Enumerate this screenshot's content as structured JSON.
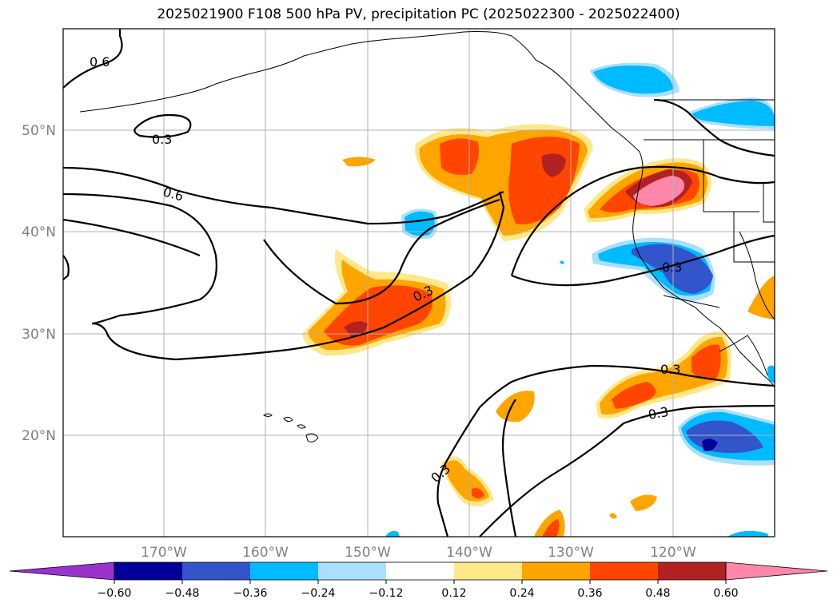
{
  "title": "2025021900 F108 500 hPa PV, precipitation PC (2025022300 - 2025022400)",
  "lat_labels": [
    "50°N",
    "40°N",
    "30°N",
    "20°N"
  ],
  "lon_labels": [
    "170°W",
    "160°W",
    "150°W",
    "140°W",
    "130°W",
    "120°W"
  ],
  "contour_labels": [
    "0.6",
    "0.3",
    "0.6",
    "0.3",
    "0.3",
    "0.3",
    "0.3",
    "0.3"
  ],
  "colorbar": {
    "colors": [
      "#9933cc",
      "#000099",
      "#3355cc",
      "#00bbff",
      "#aadfff",
      "#ffffff",
      "#ffe88a",
      "#ffa500",
      "#ff4500",
      "#b22222",
      "#ff88aa"
    ],
    "ticks": [
      "−0.60",
      "−0.48",
      "−0.36",
      "−0.24",
      "−0.12",
      "0.12",
      "0.24",
      "0.36",
      "0.48",
      "0.60"
    ]
  },
  "colors": {
    "gridline": "#b0b0b0",
    "contour": "#000000",
    "coast": "#000000"
  }
}
